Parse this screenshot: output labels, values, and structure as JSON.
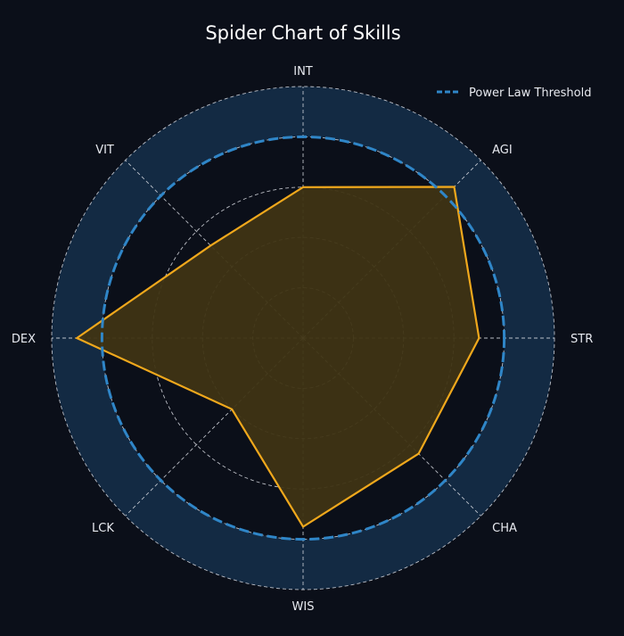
{
  "chart_data": {
    "type": "radar",
    "title": "Spider Chart of Skills",
    "axes": [
      "STR",
      "AGI",
      "INT",
      "VIT",
      "DEX",
      "LCK",
      "WIS",
      "CHA"
    ],
    "series": [
      {
        "values": [
          7,
          8.5,
          6,
          5.2,
          9,
          4,
          7.5,
          6.5
        ]
      }
    ],
    "threshold": {
      "name": "Power Law Threshold",
      "value": 8
    },
    "rlim": [
      0,
      10
    ],
    "gridlines": [
      2,
      4,
      6,
      8,
      10
    ],
    "legend_position": "top-right",
    "colors": {
      "background": "#0b0f19",
      "polygon_stroke": "#f0a81c",
      "polygon_fill": "#3f3414",
      "threshold": "#2f86c8",
      "band": "#132a43",
      "grid": "#d9dce3"
    }
  }
}
